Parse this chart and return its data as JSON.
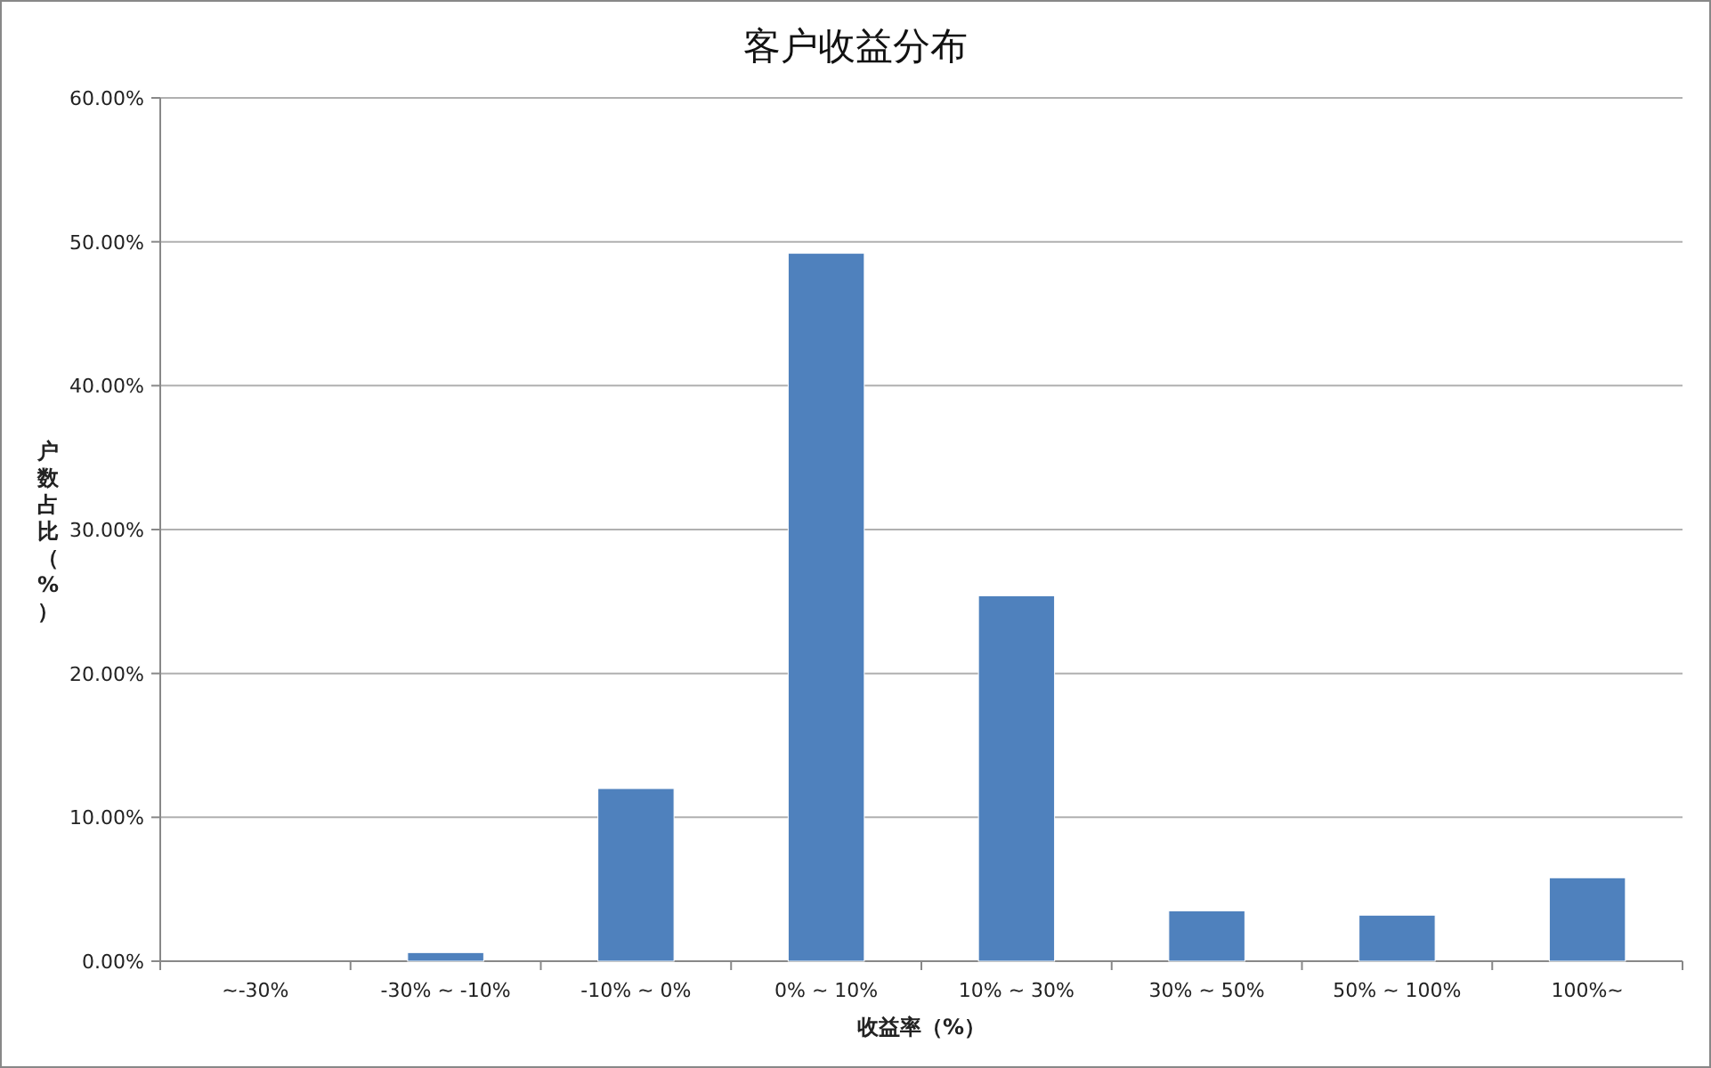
{
  "chart_data": {
    "type": "bar",
    "title": "客户收益分布",
    "xlabel": "收益率（%）",
    "ylabel": "户数占比（%）",
    "categories": [
      "~-30%",
      "-30% ~ -10%",
      "-10% ~ 0%",
      "0% ~ 10%",
      "10% ~ 30%",
      "30% ~ 50%",
      "50% ~ 100%",
      "100%~"
    ],
    "values": [
      0,
      0.6,
      12.0,
      49.2,
      25.4,
      3.5,
      3.2,
      5.8
    ],
    "color": "#4f81bd",
    "ylim": [
      0,
      60
    ],
    "yticks": [
      {
        "value": 0,
        "label": "0.00%"
      },
      {
        "value": 10,
        "label": "10.00%"
      },
      {
        "value": 20,
        "label": "20.00%"
      },
      {
        "value": 30,
        "label": "30.00%"
      },
      {
        "value": 40,
        "label": "40.00%"
      },
      {
        "value": 50,
        "label": "50.00%"
      },
      {
        "value": 60,
        "label": "60.00%"
      }
    ],
    "grid": "y"
  }
}
